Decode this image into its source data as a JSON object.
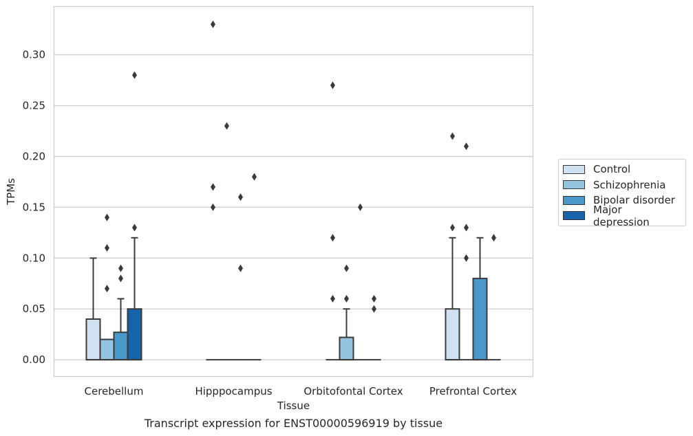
{
  "caption": "Transcript expression for ENST00000596919 by tissue",
  "chart_data": {
    "type": "box",
    "title": "",
    "xlabel": "Tissue",
    "ylabel": "TPMs",
    "ylim": [
      -0.0165,
      0.3475
    ],
    "yticks": [
      "0.00",
      "0.05",
      "0.10",
      "0.15",
      "0.20",
      "0.25",
      "0.30"
    ],
    "grid": true,
    "legend_position": "right",
    "categories": [
      "Cerebellum",
      "Hipppocampus",
      "Orbitofontal Cortex",
      "Prefrontal Cortex"
    ],
    "series": [
      {
        "name": "Control",
        "color": "#d0e1f2",
        "boxes": [
          {
            "q1": 0,
            "median": 0,
            "q3": 0.04,
            "whisker_low": 0,
            "whisker_high": 0.1,
            "outliers": []
          },
          {
            "q1": 0,
            "median": 0,
            "q3": 0,
            "whisker_low": 0,
            "whisker_high": 0,
            "outliers": [
              0.33,
              0.17,
              0.15
            ]
          },
          {
            "q1": 0,
            "median": 0,
            "q3": 0,
            "whisker_low": 0,
            "whisker_high": 0,
            "outliers": [
              0.27,
              0.12,
              0.06
            ]
          },
          {
            "q1": 0,
            "median": 0,
            "q3": 0.05,
            "whisker_low": 0,
            "whisker_high": 0.12,
            "outliers": [
              0.22,
              0.13
            ]
          }
        ]
      },
      {
        "name": "Schizophrenia",
        "color": "#94c4df",
        "boxes": [
          {
            "q1": 0,
            "median": 0,
            "q3": 0.02,
            "whisker_low": 0,
            "whisker_high": 0.02,
            "outliers": [
              0.14,
              0.11,
              0.07
            ]
          },
          {
            "q1": 0,
            "median": 0,
            "q3": 0,
            "whisker_low": 0,
            "whisker_high": 0,
            "outliers": [
              0.23
            ]
          },
          {
            "q1": 0,
            "median": 0,
            "q3": 0.022,
            "whisker_low": 0,
            "whisker_high": 0.05,
            "outliers": [
              0.09,
              0.06
            ]
          },
          {
            "q1": 0,
            "median": 0,
            "q3": 0,
            "whisker_low": 0,
            "whisker_high": 0,
            "outliers": [
              0.21,
              0.13,
              0.1
            ]
          }
        ]
      },
      {
        "name": "Bipolar disorder",
        "color": "#4a98c9",
        "boxes": [
          {
            "q1": 0,
            "median": 0,
            "q3": 0.027,
            "whisker_low": 0,
            "whisker_high": 0.06,
            "outliers": [
              0.09,
              0.08
            ]
          },
          {
            "q1": 0,
            "median": 0,
            "q3": 0,
            "whisker_low": 0,
            "whisker_high": 0,
            "outliers": [
              0.16,
              0.09
            ]
          },
          {
            "q1": 0,
            "median": 0,
            "q3": 0,
            "whisker_low": 0,
            "whisker_high": 0,
            "outliers": [
              0.15
            ]
          },
          {
            "q1": 0,
            "median": 0,
            "q3": 0.08,
            "whisker_low": 0,
            "whisker_high": 0.12,
            "outliers": []
          }
        ]
      },
      {
        "name": "Major depression",
        "color": "#1764ab",
        "boxes": [
          {
            "q1": 0,
            "median": 0,
            "q3": 0.05,
            "whisker_low": 0,
            "whisker_high": 0.12,
            "outliers": [
              0.28,
              0.13
            ]
          },
          {
            "q1": 0,
            "median": 0,
            "q3": 0,
            "whisker_low": 0,
            "whisker_high": 0,
            "outliers": [
              0.18
            ]
          },
          {
            "q1": 0,
            "median": 0,
            "q3": 0,
            "whisker_low": 0,
            "whisker_high": 0,
            "outliers": [
              0.06,
              0.05
            ]
          },
          {
            "q1": 0,
            "median": 0,
            "q3": 0,
            "whisker_low": 0,
            "whisker_high": 0,
            "outliers": [
              0.12
            ]
          }
        ]
      }
    ]
  }
}
